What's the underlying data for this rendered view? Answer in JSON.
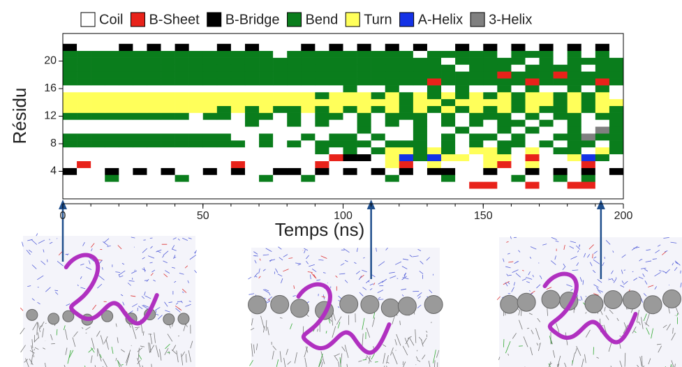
{
  "chart_data": {
    "type": "heatmap",
    "xlabel": "Temps (ns)",
    "ylabel": "Résidu",
    "xlim": [
      0,
      200
    ],
    "ylim": [
      0,
      24
    ],
    "xticks": [
      0,
      50,
      100,
      150,
      200
    ],
    "yticks": [
      4,
      8,
      12,
      16,
      20
    ],
    "states": [
      {
        "name": "Coil",
        "color": "#ffffff"
      },
      {
        "name": "B-Sheet",
        "color": "#e8221a"
      },
      {
        "name": "B-Bridge",
        "color": "#000000"
      },
      {
        "name": "Bend",
        "color": "#0a7d1c"
      },
      {
        "name": "Turn",
        "color": "#ffff5a"
      },
      {
        "name": "A-Helix",
        "color": "#1432e6"
      },
      {
        "name": "3-Helix",
        "color": "#808080"
      }
    ],
    "bins": [
      0,
      5,
      10,
      15,
      20,
      25,
      30,
      35,
      40,
      45,
      50,
      55,
      60,
      65,
      70,
      75,
      80,
      85,
      90,
      95,
      100,
      105,
      110,
      115,
      120,
      125,
      130,
      135,
      140,
      145,
      150,
      155,
      160,
      165,
      170,
      175,
      180,
      185,
      190,
      195,
      200
    ],
    "residues": [
      2,
      3,
      4,
      5,
      6,
      7,
      8,
      9,
      10,
      11,
      12,
      13,
      14,
      15,
      16,
      17,
      18,
      19,
      20,
      21,
      22
    ],
    "values": [
      [
        0,
        0,
        0,
        0,
        0,
        0,
        0,
        0,
        0,
        0,
        0,
        0,
        0,
        0,
        0,
        0,
        0,
        0,
        0,
        0,
        0,
        0,
        0,
        0,
        0,
        0,
        0,
        0,
        0,
        1,
        1,
        0,
        0,
        1,
        0,
        0,
        1,
        1,
        0,
        0
      ],
      [
        0,
        0,
        0,
        3,
        0,
        0,
        0,
        0,
        3,
        0,
        0,
        0,
        0,
        0,
        3,
        0,
        0,
        3,
        0,
        0,
        0,
        0,
        0,
        3,
        0,
        0,
        0,
        3,
        0,
        0,
        0,
        0,
        3,
        0,
        0,
        3,
        0,
        3,
        0,
        0
      ],
      [
        2,
        0,
        0,
        2,
        0,
        2,
        0,
        2,
        0,
        0,
        2,
        0,
        2,
        0,
        0,
        2,
        2,
        0,
        2,
        0,
        2,
        0,
        2,
        0,
        2,
        0,
        2,
        2,
        0,
        0,
        2,
        0,
        0,
        2,
        0,
        2,
        0,
        2,
        0,
        2
      ],
      [
        0,
        1,
        0,
        0,
        0,
        0,
        0,
        0,
        0,
        0,
        0,
        0,
        1,
        0,
        0,
        0,
        0,
        0,
        1,
        0,
        0,
        0,
        0,
        4,
        1,
        0,
        4,
        0,
        0,
        0,
        4,
        1,
        0,
        4,
        0,
        0,
        0,
        1,
        0,
        0
      ],
      [
        0,
        0,
        0,
        0,
        0,
        0,
        0,
        0,
        0,
        0,
        0,
        0,
        0,
        0,
        0,
        0,
        0,
        0,
        0,
        1,
        2,
        2,
        0,
        4,
        5,
        3,
        5,
        4,
        4,
        0,
        4,
        4,
        0,
        1,
        0,
        0,
        4,
        5,
        3,
        0
      ],
      [
        0,
        0,
        0,
        0,
        0,
        0,
        0,
        0,
        0,
        0,
        0,
        0,
        0,
        0,
        0,
        0,
        0,
        0,
        3,
        0,
        3,
        0,
        3,
        4,
        4,
        3,
        4,
        3,
        0,
        4,
        4,
        3,
        0,
        4,
        0,
        3,
        3,
        0,
        4,
        3
      ],
      [
        3,
        3,
        3,
        3,
        3,
        3,
        3,
        3,
        3,
        3,
        3,
        3,
        3,
        0,
        3,
        0,
        3,
        0,
        3,
        3,
        3,
        3,
        0,
        3,
        3,
        3,
        0,
        3,
        0,
        3,
        0,
        3,
        3,
        0,
        3,
        0,
        3,
        3,
        0,
        3
      ],
      [
        3,
        3,
        3,
        3,
        3,
        3,
        3,
        3,
        3,
        3,
        3,
        3,
        0,
        0,
        3,
        0,
        0,
        3,
        0,
        3,
        3,
        0,
        3,
        0,
        0,
        3,
        0,
        3,
        0,
        3,
        3,
        0,
        3,
        0,
        0,
        3,
        3,
        6,
        3,
        3
      ],
      [
        0,
        0,
        0,
        0,
        0,
        0,
        0,
        0,
        0,
        0,
        0,
        0,
        0,
        0,
        0,
        0,
        0,
        0,
        0,
        0,
        0,
        3,
        0,
        0,
        0,
        3,
        0,
        0,
        3,
        0,
        0,
        3,
        0,
        3,
        0,
        0,
        3,
        0,
        6,
        3
      ],
      [
        0,
        0,
        0,
        0,
        0,
        0,
        0,
        0,
        0,
        0,
        0,
        0,
        0,
        3,
        0,
        0,
        3,
        0,
        3,
        0,
        0,
        3,
        0,
        3,
        0,
        3,
        0,
        3,
        0,
        3,
        0,
        3,
        3,
        0,
        3,
        0,
        3,
        0,
        0,
        3
      ],
      [
        3,
        3,
        3,
        3,
        3,
        3,
        3,
        3,
        3,
        0,
        3,
        3,
        0,
        3,
        3,
        0,
        3,
        0,
        3,
        3,
        0,
        3,
        0,
        3,
        3,
        3,
        0,
        3,
        0,
        3,
        3,
        3,
        0,
        3,
        0,
        3,
        3,
        0,
        3,
        3
      ],
      [
        4,
        4,
        4,
        4,
        4,
        4,
        4,
        4,
        4,
        4,
        4,
        3,
        4,
        3,
        4,
        3,
        3,
        4,
        3,
        4,
        3,
        4,
        3,
        4,
        3,
        4,
        3,
        4,
        3,
        4,
        3,
        4,
        3,
        4,
        3,
        3,
        4,
        3,
        4,
        3
      ],
      [
        4,
        4,
        4,
        4,
        4,
        4,
        4,
        4,
        4,
        4,
        4,
        4,
        4,
        4,
        4,
        4,
        4,
        4,
        4,
        4,
        4,
        4,
        4,
        4,
        3,
        4,
        4,
        3,
        4,
        4,
        4,
        4,
        3,
        4,
        4,
        3,
        4,
        3,
        4,
        4
      ],
      [
        4,
        4,
        4,
        4,
        4,
        4,
        4,
        4,
        4,
        4,
        4,
        4,
        4,
        4,
        4,
        4,
        4,
        4,
        3,
        4,
        4,
        4,
        3,
        4,
        3,
        4,
        3,
        4,
        3,
        4,
        3,
        4,
        3,
        4,
        4,
        3,
        4,
        3,
        4,
        0
      ],
      [
        0,
        0,
        0,
        0,
        0,
        0,
        0,
        0,
        0,
        0,
        0,
        0,
        0,
        0,
        0,
        0,
        0,
        0,
        0,
        0,
        3,
        0,
        0,
        3,
        0,
        0,
        3,
        0,
        3,
        0,
        0,
        3,
        0,
        3,
        0,
        0,
        3,
        0,
        3,
        0
      ],
      [
        3,
        3,
        3,
        3,
        3,
        3,
        3,
        3,
        3,
        3,
        3,
        3,
        3,
        3,
        3,
        3,
        3,
        3,
        3,
        3,
        3,
        3,
        3,
        3,
        3,
        3,
        1,
        3,
        3,
        3,
        3,
        3,
        3,
        1,
        3,
        3,
        3,
        3,
        1,
        3
      ],
      [
        3,
        3,
        3,
        3,
        3,
        3,
        3,
        3,
        3,
        3,
        3,
        3,
        3,
        3,
        3,
        3,
        3,
        3,
        3,
        3,
        3,
        3,
        3,
        3,
        3,
        3,
        3,
        3,
        3,
        3,
        3,
        1,
        3,
        3,
        3,
        1,
        3,
        3,
        3,
        3
      ],
      [
        3,
        3,
        3,
        3,
        3,
        3,
        3,
        3,
        3,
        3,
        3,
        3,
        3,
        3,
        3,
        3,
        3,
        3,
        3,
        3,
        3,
        3,
        3,
        3,
        3,
        3,
        3,
        3,
        0,
        3,
        3,
        3,
        0,
        3,
        3,
        3,
        3,
        0,
        3,
        3
      ],
      [
        3,
        3,
        3,
        3,
        3,
        3,
        3,
        3,
        3,
        3,
        3,
        3,
        3,
        3,
        3,
        3,
        3,
        3,
        3,
        3,
        3,
        3,
        3,
        3,
        3,
        3,
        3,
        0,
        3,
        3,
        3,
        3,
        3,
        0,
        3,
        0,
        3,
        3,
        3,
        3
      ],
      [
        3,
        3,
        3,
        3,
        3,
        3,
        3,
        3,
        3,
        3,
        3,
        3,
        3,
        3,
        3,
        0,
        3,
        3,
        3,
        3,
        3,
        3,
        3,
        3,
        3,
        0,
        3,
        3,
        3,
        3,
        3,
        0,
        3,
        3,
        3,
        0,
        3,
        0,
        3,
        0
      ],
      [
        2,
        0,
        0,
        0,
        2,
        0,
        2,
        0,
        2,
        0,
        0,
        2,
        0,
        2,
        0,
        0,
        0,
        2,
        0,
        2,
        0,
        2,
        0,
        2,
        0,
        2,
        0,
        0,
        2,
        0,
        2,
        0,
        2,
        0,
        2,
        0,
        2,
        0,
        2,
        0
      ]
    ]
  }
}
